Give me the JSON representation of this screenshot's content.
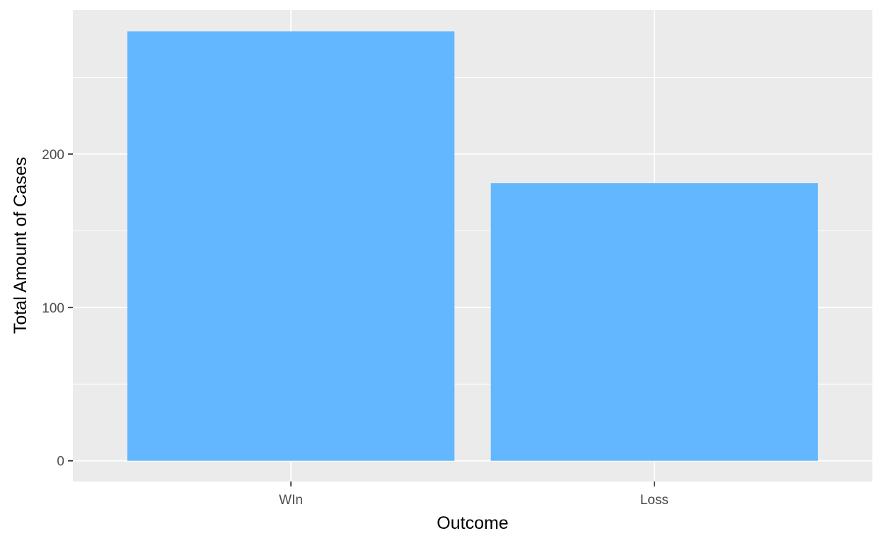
{
  "chart_data": {
    "type": "bar",
    "title": "",
    "xlabel": "Outcome",
    "ylabel": "Total Amount of Cases",
    "categories": [
      "WIn",
      "Loss"
    ],
    "values": [
      280,
      181
    ],
    "ylim": [
      -13.5,
      294
    ],
    "y_ticks": [
      0,
      100,
      200
    ],
    "y_minor_ticks": [
      50,
      150,
      250
    ],
    "grid": true,
    "legend": "none",
    "colors": {
      "bar": "#63B7FF",
      "panel_background": "#EBEBEB",
      "grid_line": "#FFFFFF",
      "tick_mark": "#333333"
    }
  }
}
